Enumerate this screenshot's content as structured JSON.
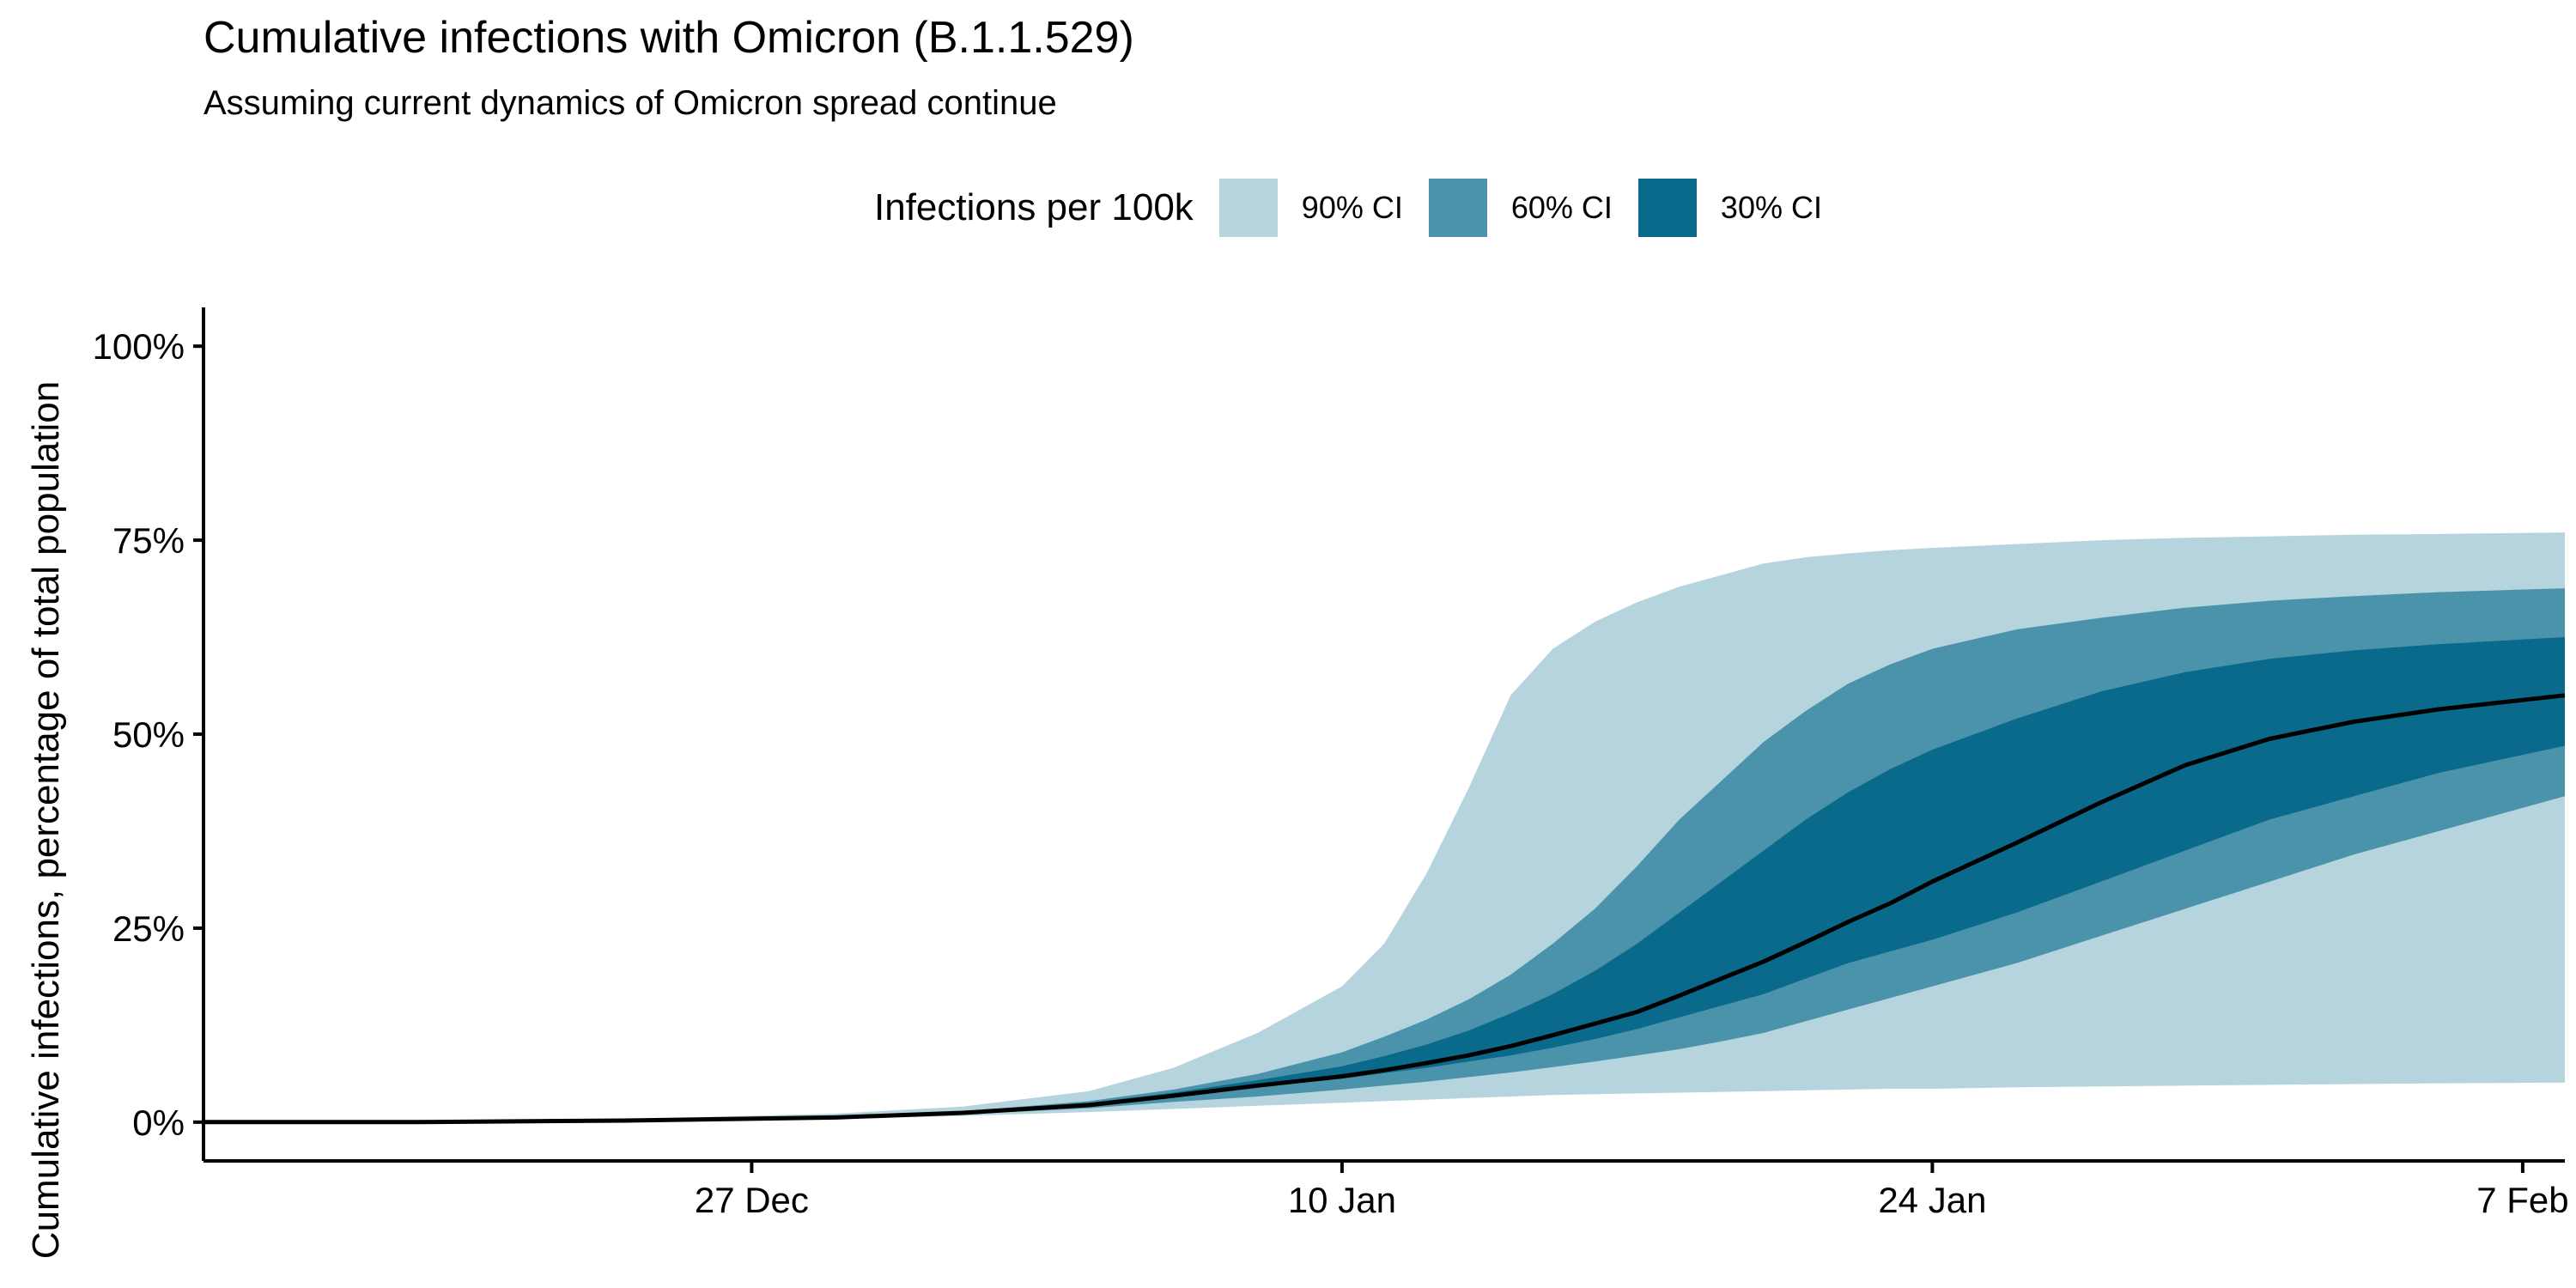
{
  "title": "Cumulative infections with Omicron (B.1.1.529)",
  "subtitle": "Assuming current dynamics of Omicron spread continue",
  "colors": {
    "ci90": "#b5d4de",
    "ci60": "#4b93ab",
    "ci30": "#0a6a8c",
    "median": "#000000",
    "axis": "#000000",
    "background": "#ffffff"
  },
  "chart_data": {
    "type": "area",
    "title": "Cumulative infections with Omicron (B.1.1.529)",
    "subtitle": "Assuming current dynamics of Omicron spread continue",
    "xlabel": "",
    "ylabel": "Cumulative infections, percentage of total population",
    "legend": {
      "title": "Infections per 100k",
      "position": "top",
      "items": [
        {
          "label": "90% CI",
          "color": "#b5d4de"
        },
        {
          "label": "60% CI",
          "color": "#4b93ab"
        },
        {
          "label": "30% CI",
          "color": "#0a6a8c"
        }
      ]
    },
    "grid": false,
    "xlim": [
      "2021-12-14",
      "2022-02-08"
    ],
    "ylim": [
      -0.05,
      1.05
    ],
    "x_ticks": [
      {
        "date": "2021-12-27",
        "label": "27 Dec"
      },
      {
        "date": "2022-01-10",
        "label": "10 Jan"
      },
      {
        "date": "2022-01-24",
        "label": "24 Jan"
      },
      {
        "date": "2022-02-07",
        "label": "7 Feb"
      }
    ],
    "y_ticks": [
      {
        "value": 0,
        "label": "0%"
      },
      {
        "value": 0.25,
        "label": "25%"
      },
      {
        "value": 0.5,
        "label": "50%"
      },
      {
        "value": 0.75,
        "label": "75%"
      },
      {
        "value": 1.0,
        "label": "100%"
      }
    ],
    "x": [
      "2021-12-14",
      "2021-12-19",
      "2021-12-24",
      "2021-12-29",
      "2022-01-01",
      "2022-01-04",
      "2022-01-06",
      "2022-01-08",
      "2022-01-10",
      "2022-01-11",
      "2022-01-12",
      "2022-01-13",
      "2022-01-14",
      "2022-01-15",
      "2022-01-16",
      "2022-01-17",
      "2022-01-18",
      "2022-01-19",
      "2022-01-20",
      "2022-01-21",
      "2022-01-22",
      "2022-01-23",
      "2022-01-24",
      "2022-01-26",
      "2022-01-28",
      "2022-01-30",
      "2022-02-01",
      "2022-02-03",
      "2022-02-05",
      "2022-02-08"
    ],
    "series": [
      {
        "name": "90% CI",
        "lower": [
          0,
          0,
          0.002,
          0.004,
          0.008,
          0.013,
          0.017,
          0.021,
          0.025,
          0.027,
          0.029,
          0.031,
          0.033,
          0.035,
          0.036,
          0.037,
          0.038,
          0.039,
          0.04,
          0.041,
          0.042,
          0.043,
          0.043,
          0.045,
          0.046,
          0.047,
          0.048,
          0.049,
          0.05,
          0.051
        ],
        "upper": [
          0,
          0.001,
          0.004,
          0.011,
          0.02,
          0.04,
          0.07,
          0.115,
          0.175,
          0.23,
          0.32,
          0.43,
          0.55,
          0.61,
          0.645,
          0.67,
          0.69,
          0.705,
          0.72,
          0.728,
          0.733,
          0.737,
          0.74,
          0.745,
          0.75,
          0.753,
          0.755,
          0.757,
          0.758,
          0.76
        ]
      },
      {
        "name": "60% CI",
        "lower": [
          0,
          0,
          0.002,
          0.005,
          0.01,
          0.018,
          0.026,
          0.033,
          0.042,
          0.047,
          0.052,
          0.058,
          0.064,
          0.071,
          0.078,
          0.086,
          0.094,
          0.104,
          0.115,
          0.13,
          0.145,
          0.16,
          0.175,
          0.205,
          0.24,
          0.275,
          0.31,
          0.345,
          0.375,
          0.42
        ],
        "upper": [
          0,
          0,
          0.003,
          0.007,
          0.014,
          0.027,
          0.042,
          0.062,
          0.09,
          0.11,
          0.132,
          0.158,
          0.19,
          0.23,
          0.275,
          0.33,
          0.39,
          0.44,
          0.49,
          0.53,
          0.565,
          0.59,
          0.61,
          0.635,
          0.65,
          0.663,
          0.672,
          0.678,
          0.683,
          0.688
        ]
      },
      {
        "name": "30% CI",
        "lower": [
          0,
          0,
          0.002,
          0.006,
          0.012,
          0.022,
          0.034,
          0.045,
          0.056,
          0.063,
          0.07,
          0.078,
          0.086,
          0.096,
          0.107,
          0.12,
          0.135,
          0.15,
          0.165,
          0.185,
          0.205,
          0.22,
          0.235,
          0.27,
          0.31,
          0.35,
          0.39,
          0.42,
          0.45,
          0.485
        ],
        "upper": [
          0,
          0,
          0.003,
          0.007,
          0.013,
          0.025,
          0.038,
          0.054,
          0.072,
          0.085,
          0.1,
          0.118,
          0.14,
          0.165,
          0.195,
          0.23,
          0.27,
          0.31,
          0.35,
          0.39,
          0.425,
          0.455,
          0.48,
          0.52,
          0.555,
          0.58,
          0.597,
          0.608,
          0.616,
          0.625
        ]
      },
      {
        "name": "",
        "values": [
          0,
          0,
          0.002,
          0.006,
          0.012,
          0.022,
          0.034,
          0.047,
          0.059,
          0.067,
          0.076,
          0.086,
          0.098,
          0.112,
          0.127,
          0.142,
          0.163,
          0.185,
          0.207,
          0.232,
          0.258,
          0.282,
          0.31,
          0.36,
          0.412,
          0.46,
          0.494,
          0.516,
          0.532,
          0.55
        ]
      }
    ]
  }
}
